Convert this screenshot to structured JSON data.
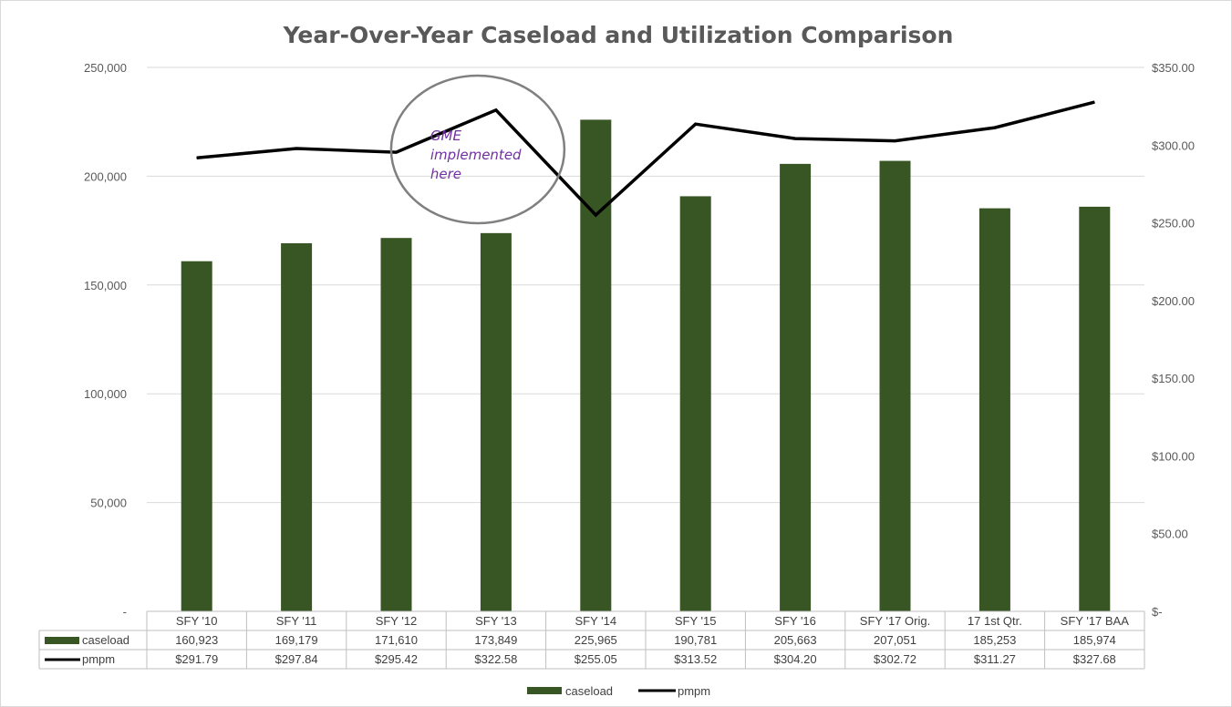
{
  "chart_data": {
    "type": "bar",
    "title": "Year-Over-Year Caseload and Utilization Comparison",
    "categories": [
      "SFY '10",
      "SFY '11",
      "SFY '12",
      "SFY '13",
      "SFY '14",
      "SFY '15",
      "SFY '16",
      "SFY '17 Orig.",
      "17 1st Qtr.",
      "SFY '17 BAA"
    ],
    "series": [
      {
        "name": "caseload",
        "type": "bar",
        "axis": "left",
        "color": "#375623",
        "values": [
          160923,
          169179,
          171610,
          173849,
          225965,
          190781,
          205663,
          207051,
          185253,
          185974
        ],
        "labels": [
          "160,923",
          "169,179",
          "171,610",
          "173,849",
          "225,965",
          "190,781",
          "205,663",
          "207,051",
          "185,253",
          "185,974"
        ]
      },
      {
        "name": "pmpm",
        "type": "line",
        "axis": "right",
        "color": "#000000",
        "values": [
          291.79,
          297.84,
          295.42,
          322.58,
          255.05,
          313.52,
          304.2,
          302.72,
          311.27,
          327.68
        ],
        "labels": [
          "$291.79",
          "$297.84",
          "$295.42",
          "$322.58",
          "$255.05",
          "$313.52",
          "$304.20",
          "$302.72",
          "$311.27",
          "$327.68"
        ]
      }
    ],
    "y_left": {
      "ylim": [
        0,
        250000
      ],
      "ticks": [
        0,
        50000,
        100000,
        150000,
        200000,
        250000
      ],
      "tick_labels": [
        "-",
        "50,000",
        "100,000",
        "150,000",
        "200,000",
        "250,000"
      ]
    },
    "y_right": {
      "ylim": [
        0,
        350
      ],
      "ticks": [
        0,
        50,
        100,
        150,
        200,
        250,
        300,
        350
      ],
      "tick_labels": [
        "$-",
        "$50.00",
        "$100.00",
        "$150.00",
        "$200.00",
        "$250.00",
        "$300.00",
        "$350.00"
      ]
    },
    "grid": true,
    "data_table": true,
    "legend": {
      "position": "bottom",
      "entries": [
        "caseload",
        "pmpm"
      ]
    },
    "annotation": {
      "text_lines": [
        "GME",
        "implemented",
        "here"
      ],
      "near_category": "SFY '13",
      "text_color": "#7030a0",
      "circle_color": "#808080"
    }
  }
}
